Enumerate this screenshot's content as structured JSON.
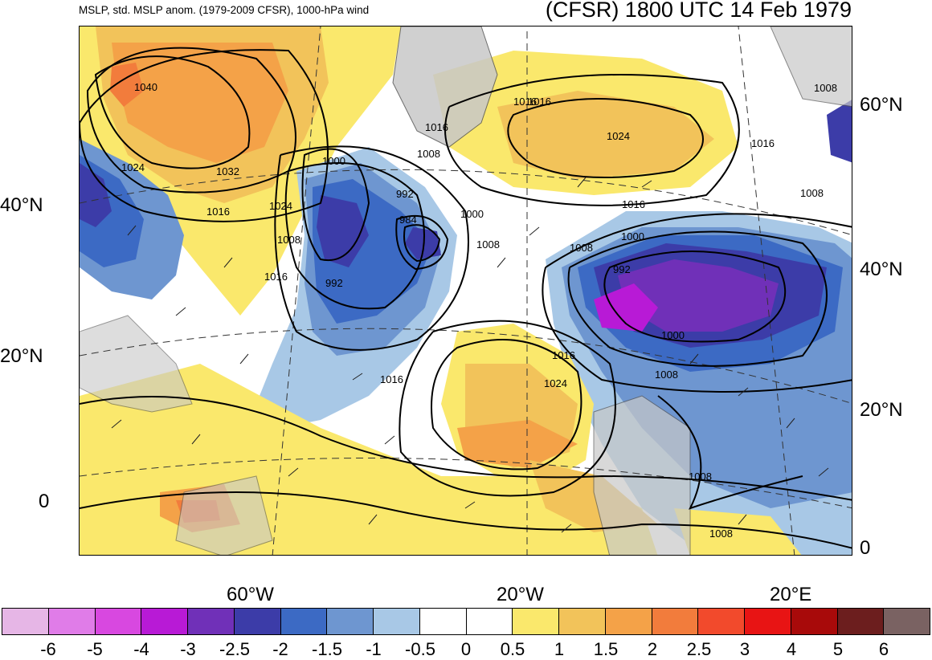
{
  "header": {
    "left_title": "MSLP, std. MSLP anom. (1979-2009 CFSR), 1000-hPa wind",
    "right_title": "(CFSR) 1800 UTC 14 Feb 1979"
  },
  "map": {
    "lat_labels_left": [
      "40°N",
      "20°N",
      "0"
    ],
    "lat_labels_right": [
      "60°N",
      "40°N",
      "20°N",
      "0"
    ],
    "lon_labels_bottom": [
      "60°W",
      "20°W",
      "20°E"
    ],
    "isobar_labels": [
      "1040",
      "1024",
      "1032",
      "1016",
      "1000",
      "1024",
      "1016",
      "1008",
      "992",
      "984",
      "1000",
      "1008",
      "992",
      "1016",
      "1016",
      "1008",
      "1016",
      "1024",
      "1016",
      "1008",
      "1000",
      "992",
      "1000",
      "1008",
      "1016",
      "1024",
      "1016",
      "1008",
      "1016",
      "1008",
      "1008",
      "1008"
    ],
    "colors": {
      "land": "#c8c8c8",
      "coast": "#555555",
      "isobar": "#000000"
    }
  },
  "colorbar": {
    "colors": [
      "#e6b6e6",
      "#e07ce8",
      "#d848e0",
      "#b81ad6",
      "#7030b8",
      "#3c3ca8",
      "#3c6ac4",
      "#6e96d0",
      "#a8c8e6",
      "#ffffff",
      "#ffffff",
      "#fae86c",
      "#f2c35a",
      "#f4a248",
      "#f27c3c",
      "#f24a2c",
      "#e81414",
      "#a80a0a",
      "#6c1e1e",
      "#7a6262"
    ],
    "labels": [
      "-6",
      "-5",
      "-4",
      "-3",
      "-2.5",
      "-2",
      "-1.5",
      "-1",
      "-0.5",
      "0",
      "0.5",
      "1",
      "1.5",
      "2",
      "2.5",
      "3",
      "4",
      "5",
      "6"
    ]
  }
}
